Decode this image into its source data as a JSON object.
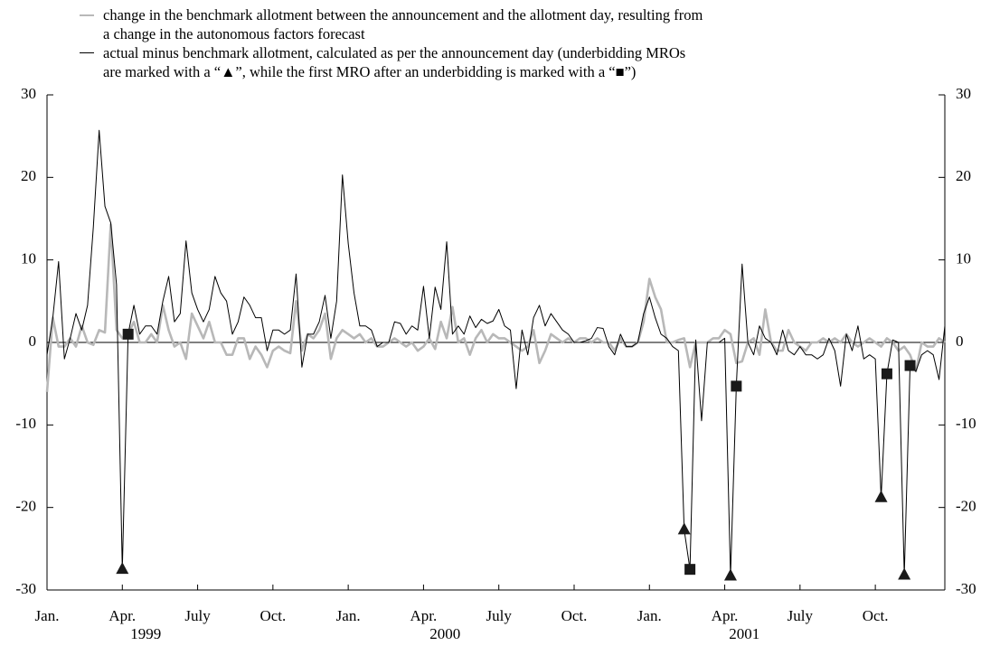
{
  "chart_data": {
    "type": "line",
    "categories": [
      "Jan.",
      null,
      null,
      null,
      null,
      null,
      null,
      null,
      null,
      null,
      null,
      null,
      null,
      "Apr.",
      null,
      null,
      null,
      null,
      null,
      null,
      null,
      null,
      null,
      null,
      null,
      null,
      "July",
      null,
      null,
      null,
      null,
      null,
      null,
      null,
      null,
      null,
      null,
      null,
      null,
      "Oct.",
      null,
      null,
      null,
      null,
      null,
      null,
      null,
      null,
      null,
      null,
      null,
      null,
      "Jan.",
      null,
      null,
      null,
      null,
      null,
      null,
      null,
      null,
      null,
      null,
      null,
      null,
      "Apr.",
      null,
      null,
      null,
      null,
      null,
      null,
      null,
      null,
      null,
      null,
      null,
      null,
      "July",
      null,
      null,
      null,
      null,
      null,
      null,
      null,
      null,
      null,
      null,
      null,
      null,
      "Oct.",
      null,
      null,
      null,
      null,
      null,
      null,
      null,
      null,
      null,
      null,
      null,
      null,
      "Jan.",
      null,
      null,
      null,
      null,
      null,
      null,
      null,
      null,
      null,
      null,
      null,
      null,
      "Apr.",
      null,
      null,
      null,
      null,
      null,
      null,
      null,
      null,
      null,
      null,
      null,
      null,
      "July",
      null,
      null,
      null,
      null,
      null,
      null,
      null,
      null,
      null,
      null,
      null,
      null,
      "Oct.",
      null,
      null,
      null,
      null,
      null,
      null,
      null,
      null,
      null,
      null,
      null,
      null
    ],
    "years": [
      "1999",
      "2000",
      "2001"
    ],
    "series": [
      {
        "name": "change in the benchmark allotment between the announcement and the allotment day, resulting from a change in the autonomous factors forecast",
        "color": "#b8b8b8",
        "values": [
          -6,
          3,
          -0.5,
          -0.5,
          0.5,
          -0.5,
          2,
          0,
          -0.3,
          1.5,
          1.2,
          14.3,
          1.5,
          0.5,
          1,
          2.5,
          0,
          0,
          1,
          0,
          4.5,
          1.5,
          -0.5,
          0,
          -2,
          3.5,
          2,
          0.5,
          2.5,
          0,
          0,
          -1.5,
          -1.5,
          0.5,
          0.5,
          -2,
          -0.5,
          -1.5,
          -3,
          -1,
          -0.5,
          -1,
          -1.3,
          5,
          -1,
          1,
          0.5,
          1.5,
          3.5,
          -2,
          0.5,
          1.5,
          1,
          0.5,
          1,
          0,
          0.5,
          -0.5,
          -0.5,
          0,
          0.5,
          0,
          -0.5,
          0,
          -1,
          -0.5,
          0.5,
          -0.8,
          2.5,
          0.5,
          4.3,
          0,
          0.5,
          -1.5,
          0.5,
          1.5,
          0,
          1,
          0.5,
          0.5,
          0,
          -0.5,
          -1,
          -0.5,
          1.5,
          -2.5,
          -1,
          1,
          0.5,
          0,
          0.5,
          0,
          0.5,
          0.5,
          0,
          0.5,
          0,
          0,
          -1,
          0.5,
          -0.5,
          -0.5,
          0,
          2.5,
          7.7,
          5.5,
          4,
          0,
          0,
          0.3,
          0.5,
          -3,
          0,
          0,
          0,
          0.5,
          0.5,
          1.5,
          1,
          -2.5,
          -2.3,
          0,
          0.5,
          -1.5,
          4,
          0,
          -1,
          -1,
          1.5,
          0,
          -0.5,
          -1,
          0,
          0,
          0.5,
          0,
          0.5,
          0,
          1,
          0,
          -0.5,
          0,
          0.5,
          0,
          -0.5,
          0.5,
          0,
          -1,
          -0.5,
          -1.5,
          -3.5,
          0,
          -0.5,
          -0.5,
          0.5,
          0
        ]
      },
      {
        "name": "actual minus benchmark allotment, calculated as per the announcement day (underbidding MROs are marked with a “▲”, while the first MRO after an underbidding is marked with a “■”)",
        "color": "#000000",
        "values": [
          -1.5,
          3,
          9.8,
          -2,
          0.5,
          3.5,
          1.5,
          4.5,
          14,
          25.7,
          16.5,
          14.5,
          7,
          -27.5,
          1,
          4.5,
          1,
          2,
          2,
          1,
          5,
          8,
          2.5,
          3.5,
          12.3,
          6,
          4,
          2.5,
          4,
          8,
          6,
          5,
          1,
          2.5,
          5.5,
          4.5,
          3,
          3,
          -1,
          1.5,
          1.5,
          1,
          1.5,
          8.3,
          -3,
          1,
          1,
          2.5,
          5.7,
          0.5,
          5,
          20.3,
          12,
          6,
          2,
          2,
          1.5,
          -0.5,
          0,
          0,
          2.5,
          2.3,
          1,
          2,
          1.5,
          6.8,
          0.5,
          6.7,
          4,
          12.2,
          1,
          2,
          1,
          3.2,
          1.8,
          2.8,
          2.3,
          2.6,
          4,
          2,
          1.5,
          -5.6,
          1.5,
          -1.5,
          3,
          4.5,
          2,
          3.5,
          2.5,
          1.5,
          1,
          0,
          0,
          0.2,
          0.5,
          1.8,
          1.7,
          -0.5,
          -1.5,
          1,
          -0.5,
          -0.5,
          0,
          3.5,
          5.5,
          3,
          1,
          0.5,
          -0.5,
          -1,
          -22.7,
          -27.5,
          0.3,
          -9.5,
          0,
          0,
          0,
          0.5,
          -28.3,
          -5.3,
          9.5,
          0,
          -1.5,
          2,
          0.5,
          0,
          -1.5,
          1.5,
          -1,
          -1.5,
          -0.5,
          -1.5,
          -1.5,
          -2,
          -1.5,
          0.5,
          -1,
          -5.3,
          1,
          -1,
          2,
          -2,
          -1.5,
          -2,
          -18.8,
          -3.8,
          0.3,
          0,
          -28.2,
          -2.8,
          -3.5,
          -1.5,
          -1,
          -1.5,
          -4.5,
          2
        ],
        "markers": [
          null,
          null,
          null,
          null,
          null,
          null,
          null,
          null,
          null,
          null,
          null,
          null,
          null,
          "triangle",
          "square",
          null,
          null,
          null,
          null,
          null,
          null,
          null,
          null,
          null,
          null,
          null,
          null,
          null,
          null,
          null,
          null,
          null,
          null,
          null,
          null,
          null,
          null,
          null,
          null,
          null,
          null,
          null,
          null,
          null,
          null,
          null,
          null,
          null,
          null,
          null,
          null,
          null,
          null,
          null,
          null,
          null,
          null,
          null,
          null,
          null,
          null,
          null,
          null,
          null,
          null,
          null,
          null,
          null,
          null,
          null,
          null,
          null,
          null,
          null,
          null,
          null,
          null,
          null,
          null,
          null,
          null,
          null,
          null,
          null,
          null,
          null,
          null,
          null,
          null,
          null,
          null,
          null,
          null,
          null,
          null,
          null,
          null,
          null,
          null,
          null,
          null,
          null,
          null,
          null,
          null,
          null,
          null,
          null,
          null,
          null,
          "triangle",
          "square",
          null,
          null,
          null,
          null,
          null,
          null,
          "triangle",
          "square",
          null,
          null,
          null,
          null,
          null,
          null,
          null,
          null,
          null,
          null,
          null,
          null,
          null,
          null,
          null,
          null,
          null,
          null,
          null,
          null,
          null,
          null,
          null,
          null,
          "triangle",
          "square",
          null,
          null,
          "triangle",
          "square",
          null,
          null,
          null,
          null,
          null,
          null
        ]
      }
    ],
    "ylim": [
      -30,
      30
    ],
    "yticks": [
      -30,
      -20,
      -10,
      0,
      10,
      20,
      30
    ],
    "zero_line": true
  }
}
